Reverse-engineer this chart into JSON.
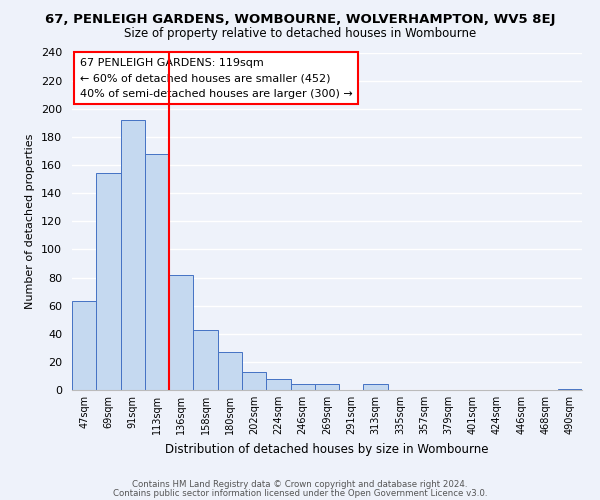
{
  "title": "67, PENLEIGH GARDENS, WOMBOURNE, WOLVERHAMPTON, WV5 8EJ",
  "subtitle": "Size of property relative to detached houses in Wombourne",
  "xlabel": "Distribution of detached houses by size in Wombourne",
  "ylabel": "Number of detached properties",
  "bar_labels": [
    "47sqm",
    "69sqm",
    "91sqm",
    "113sqm",
    "136sqm",
    "158sqm",
    "180sqm",
    "202sqm",
    "224sqm",
    "246sqm",
    "269sqm",
    "291sqm",
    "313sqm",
    "335sqm",
    "357sqm",
    "379sqm",
    "401sqm",
    "424sqm",
    "446sqm",
    "468sqm",
    "490sqm"
  ],
  "bar_values": [
    63,
    154,
    192,
    168,
    82,
    43,
    27,
    13,
    8,
    4,
    4,
    0,
    4,
    0,
    0,
    0,
    0,
    0,
    0,
    0,
    1
  ],
  "bar_color": "#c5d9f0",
  "bar_edge_color": "#4472c4",
  "vline_x": 3.5,
  "vline_color": "red",
  "annotation_title": "67 PENLEIGH GARDENS: 119sqm",
  "annotation_line1": "← 60% of detached houses are smaller (452)",
  "annotation_line2": "40% of semi-detached houses are larger (300) →",
  "annotation_box_color": "white",
  "annotation_box_edge": "red",
  "ylim": [
    0,
    240
  ],
  "yticks": [
    0,
    20,
    40,
    60,
    80,
    100,
    120,
    140,
    160,
    180,
    200,
    220,
    240
  ],
  "footer1": "Contains HM Land Registry data © Crown copyright and database right 2024.",
  "footer2": "Contains public sector information licensed under the Open Government Licence v3.0.",
  "bg_color": "#eef2fa",
  "grid_color": "#ffffff",
  "title_fontsize": 9.5,
  "subtitle_fontsize": 8.5,
  "ann_fontsize": 8.0
}
